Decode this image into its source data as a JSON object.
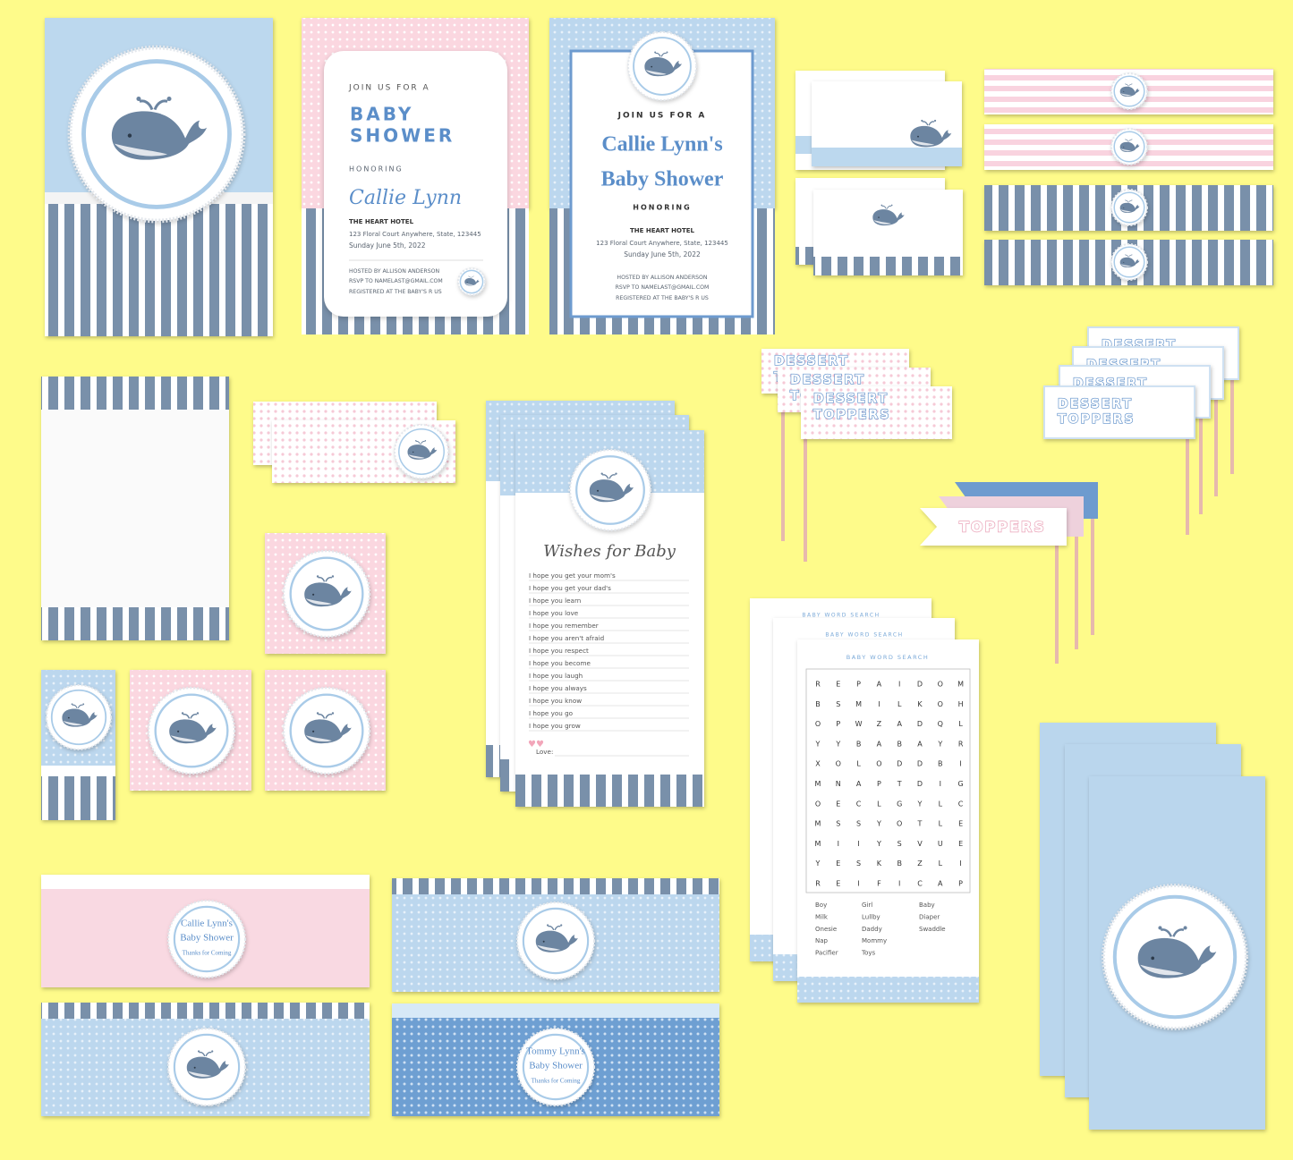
{
  "invitation_modern": {
    "intro": "JOIN US FOR A",
    "title_line1": "BABY",
    "title_line2": "SHOWER",
    "honoring": "HONORING",
    "honoree": "Callie Lynn",
    "venue": "THE HEART HOTEL",
    "address": "123 Floral Court Anywhere, State, 123445",
    "date": "Sunday June 5th, 2022",
    "host": "HOSTED BY ALLISON ANDERSON",
    "rsvp": "RSVP TO NAMELAST@GMAIL.COM",
    "registry": "REGISTERED AT THE BABY'S R US"
  },
  "invitation_classic": {
    "intro": "JOIN US FOR A",
    "title_line1": "Callie Lynn's",
    "title_line2": "Baby Shower",
    "honoring": "HONORING",
    "venue": "THE HEART HOTEL",
    "address": "123 Floral Court Anywhere, State, 123445",
    "date": "Sunday June 5th, 2022",
    "host": "HOSTED BY ALLISON ANDERSON",
    "rsvp": "RSVP TO NAMELAST@GMAIL.COM",
    "registry": "REGISTERED AT THE BABY'S R US"
  },
  "dessert_toppers": {
    "line1": "DESSERT",
    "line2": "TOPPERS"
  },
  "flag_toppers": {
    "label": "TOPPERS"
  },
  "wishes_card": {
    "title": "Wishes for Baby",
    "prompts": [
      "I hope you get your mom's",
      "I hope you get your dad's",
      "I hope you learn",
      "I hope you love",
      "I hope you remember",
      "I hope you aren't afraid",
      "I hope you respect",
      "I hope you become",
      "I hope you laugh",
      "I hope you always",
      "I hope you know",
      "I hope you go",
      "I hope you grow"
    ],
    "closing": "Love:"
  },
  "word_search": {
    "title": "BABY WORD SEARCH",
    "grid": [
      [
        "R",
        "E",
        "P",
        "A",
        "I",
        "D",
        "O",
        "M"
      ],
      [
        "B",
        "S",
        "M",
        "I",
        "L",
        "K",
        "O",
        "H"
      ],
      [
        "O",
        "P",
        "W",
        "Z",
        "A",
        "D",
        "Q",
        "L"
      ],
      [
        "Y",
        "Y",
        "B",
        "A",
        "B",
        "A",
        "Y",
        "R"
      ],
      [
        "X",
        "O",
        "L",
        "O",
        "D",
        "D",
        "B",
        "I"
      ],
      [
        "M",
        "N",
        "A",
        "P",
        "T",
        "D",
        "I",
        "G"
      ],
      [
        "O",
        "E",
        "C",
        "L",
        "G",
        "Y",
        "L",
        "C"
      ],
      [
        "M",
        "S",
        "S",
        "Y",
        "O",
        "T",
        "L",
        "E"
      ],
      [
        "M",
        "I",
        "I",
        "Y",
        "S",
        "V",
        "U",
        "E"
      ],
      [
        "Y",
        "E",
        "S",
        "K",
        "B",
        "Z",
        "L",
        "I"
      ],
      [
        "R",
        "E",
        "I",
        "F",
        "I",
        "C",
        "A",
        "P"
      ]
    ],
    "words": [
      [
        "Boy",
        "Milk",
        "Onesie",
        "Nap",
        "Pacifier"
      ],
      [
        "Girl",
        "Lullby",
        "Daddy",
        "Mommy",
        "Toys"
      ],
      [
        "Baby",
        "Diaper",
        "Swaddle"
      ]
    ]
  },
  "water_labels": [
    {
      "line1": "Callie Lynn's",
      "line2": "Baby Shower",
      "line3": "Thanks for Coming"
    },
    {
      "line1": "Tommy Lynn's",
      "line2": "Baby Shower",
      "line3": "Thanks for Coming"
    }
  ]
}
